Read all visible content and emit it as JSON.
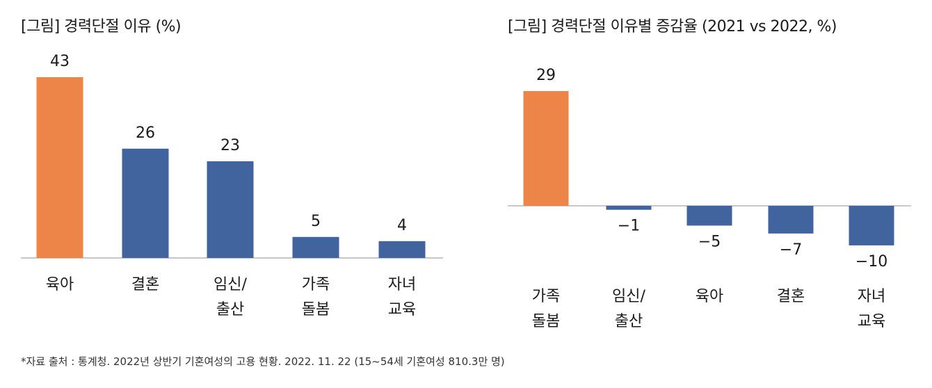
{
  "colors": {
    "highlight": "#ED8548",
    "bar": "#41649F",
    "axis": "#A6A6A6"
  },
  "chart_data": [
    {
      "type": "bar",
      "title": "[그림] 경력단절 이유 (%)",
      "categories": [
        [
          "육아"
        ],
        [
          "결혼"
        ],
        [
          "임신/",
          "출산"
        ],
        [
          "가족",
          "돌봄"
        ],
        [
          "자녀",
          "교육"
        ]
      ],
      "values": [
        43,
        26,
        23,
        5,
        4
      ],
      "value_labels": [
        "43",
        "26",
        "23",
        "5",
        "4"
      ],
      "highlight_index": 0,
      "ylim": [
        0,
        43
      ]
    },
    {
      "type": "bar",
      "title": "[그림] 경력단절 이유별 증감율 (2021 vs 2022, %)",
      "categories": [
        [
          "가족",
          "돌봄"
        ],
        [
          "임신/",
          "출산"
        ],
        [
          "육아"
        ],
        [
          "결혼"
        ],
        [
          "자녀",
          "교육"
        ]
      ],
      "values": [
        29,
        -1,
        -5,
        -7,
        -10
      ],
      "value_labels": [
        "29",
        "−1",
        "−5",
        "−7",
        "−10"
      ],
      "highlight_index": 0,
      "ylim": [
        -10,
        29
      ]
    }
  ],
  "footnote": "*자료 출처 : 통계청. 2022년 상반기 기혼여성의 고용 현황. 2022. 11. 22 (15~54세 기혼여성 810.3만 명)"
}
